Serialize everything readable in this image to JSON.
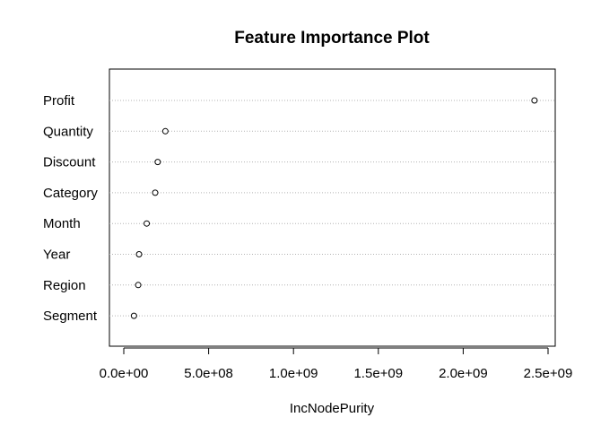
{
  "chart_data": {
    "type": "scatter",
    "title": "Feature Importance Plot",
    "xlabel": "IncNodePurity",
    "ylabel": "",
    "xlim": [
      0,
      2500000000
    ],
    "x_ticks": [
      0,
      500000000,
      1000000000,
      1500000000,
      2000000000,
      2500000000
    ],
    "x_tick_labels": [
      "0.0e+00",
      "5.0e+08",
      "1.0e+09",
      "1.5e+09",
      "2.0e+09",
      "2.5e+09"
    ],
    "grid": "horizontal dotted lines at each category",
    "categories": [
      "Profit",
      "Quantity",
      "Discount",
      "Category",
      "Month",
      "Year",
      "Region",
      "Segment"
    ],
    "values": [
      2420000000,
      245000000,
      200000000,
      185000000,
      135000000,
      90000000,
      85000000,
      60000000
    ]
  }
}
